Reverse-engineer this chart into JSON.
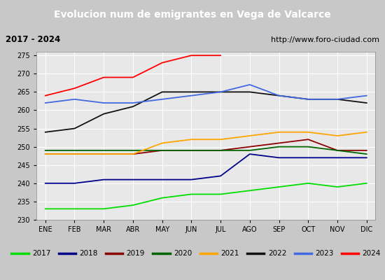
{
  "title": "Evolucion num de emigrantes en Vega de Valcarce",
  "subtitle_left": "2017 - 2024",
  "subtitle_right": "http://www.foro-ciudad.com",
  "months": [
    "ENE",
    "FEB",
    "MAR",
    "ABR",
    "MAY",
    "JUN",
    "JUL",
    "AGO",
    "SEP",
    "OCT",
    "NOV",
    "DIC"
  ],
  "ylim": [
    230,
    276
  ],
  "yticks": [
    230,
    235,
    240,
    245,
    250,
    255,
    260,
    265,
    270,
    275
  ],
  "series": {
    "2017": {
      "color": "#00dd00",
      "values": [
        233,
        233,
        233,
        234,
        236,
        237,
        237,
        238,
        239,
        240,
        239,
        240
      ]
    },
    "2018": {
      "color": "#00008b",
      "values": [
        240,
        240,
        241,
        241,
        241,
        241,
        242,
        248,
        247,
        247,
        247,
        247
      ]
    },
    "2019": {
      "color": "#8b0000",
      "values": [
        248,
        248,
        248,
        248,
        249,
        249,
        249,
        250,
        251,
        252,
        249,
        249
      ]
    },
    "2020": {
      "color": "#006400",
      "values": [
        249,
        249,
        249,
        249,
        249,
        249,
        249,
        249,
        250,
        250,
        249,
        248
      ]
    },
    "2021": {
      "color": "#ffa500",
      "values": [
        248,
        248,
        248,
        248,
        251,
        252,
        252,
        253,
        254,
        254,
        253,
        254
      ]
    },
    "2022": {
      "color": "#111111",
      "values": [
        254,
        255,
        259,
        261,
        265,
        265,
        265,
        265,
        264,
        263,
        263,
        262
      ]
    },
    "2023": {
      "color": "#4169e1",
      "values": [
        262,
        263,
        262,
        262,
        263,
        264,
        265,
        267,
        264,
        263,
        263,
        264
      ]
    },
    "2024": {
      "color": "#ff0000",
      "values": [
        264,
        266,
        269,
        269,
        273,
        275,
        275,
        null,
        null,
        null,
        null,
        null
      ]
    }
  },
  "bg_plot": "#e8e8e8",
  "bg_figure": "#c8c8c8",
  "bg_header": "#5090d0",
  "title_color": "white",
  "subtitle_box_color": "#eeeeee",
  "legend_box_color": "#f5f5f5",
  "grid_color": "#ffffff",
  "title_fontsize": 10,
  "subtitle_fontsize": 8.5,
  "tick_fontsize": 7,
  "legend_fontsize": 7.5
}
